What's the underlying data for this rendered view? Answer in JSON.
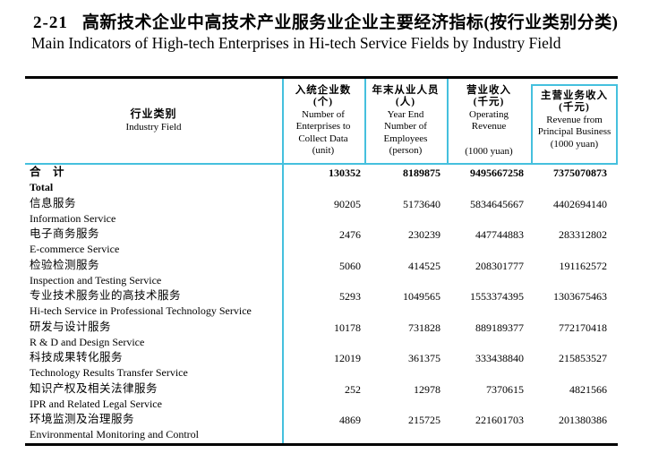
{
  "title": {
    "no": "2-21",
    "zh": "高新技术企业中高技术产业服务业企业主要经济指标(按行业类别分类)",
    "en": "Main Indicators of High-tech Enterprises in Hi-tech Service Fields by Industry Field"
  },
  "colors": {
    "accent": "#45c0de",
    "rule": "#000000"
  },
  "table": {
    "header": {
      "col1": {
        "zh": "行业类别",
        "en": "Industry Field"
      },
      "col2": {
        "zh": "入统企业数",
        "unit_zh": "(个)",
        "en1": "Number of",
        "en2": "Enterprises to",
        "en3": "Collect Data",
        "unit_en": "(unit)"
      },
      "col3": {
        "zh": "年末从业人员",
        "unit_zh": "(人)",
        "en1": "Year End",
        "en2": "Number of",
        "en3": "Employees",
        "unit_en": "(person)"
      },
      "col4": {
        "zh": "营业收入",
        "unit_zh": "(千元)",
        "en1": "Operating",
        "en2": "Revenue",
        "unit_en": "(1000 yuan)"
      },
      "col5": {
        "zh": "主营业务收入",
        "unit_zh": "(千元)",
        "en1": "Revenue from",
        "en2": "Principal Business",
        "unit_en": "(1000 yuan)"
      }
    },
    "rows": [
      {
        "zh": "合　计",
        "en": "Total",
        "bold": true,
        "values": [
          "130352",
          "8189875",
          "9495667258",
          "7375070873"
        ]
      },
      {
        "zh": "信息服务",
        "en": "Information Service",
        "bold": false,
        "values": [
          "90205",
          "5173640",
          "5834645667",
          "4402694140"
        ]
      },
      {
        "zh": "电子商务服务",
        "en": "E-commerce Service",
        "bold": false,
        "values": [
          "2476",
          "230239",
          "447744883",
          "283312802"
        ]
      },
      {
        "zh": "检验检测服务",
        "en": "Inspection and Testing Service",
        "bold": false,
        "values": [
          "5060",
          "414525",
          "208301777",
          "191162572"
        ]
      },
      {
        "zh": "专业技术服务业的高技术服务",
        "en": "Hi-tech Service in Professional Technology Service",
        "bold": false,
        "values": [
          "5293",
          "1049565",
          "1553374395",
          "1303675463"
        ]
      },
      {
        "zh": "研发与设计服务",
        "en": "R & D and Design Service",
        "bold": false,
        "values": [
          "10178",
          "731828",
          "889189377",
          "772170418"
        ]
      },
      {
        "zh": "科技成果转化服务",
        "en": "Technology Results Transfer Service",
        "bold": false,
        "values": [
          "12019",
          "361375",
          "333438840",
          "215853527"
        ]
      },
      {
        "zh": "知识产权及相关法律服务",
        "en": "IPR and Related Legal Service",
        "bold": false,
        "values": [
          "252",
          "12978",
          "7370615",
          "4821566"
        ]
      },
      {
        "zh": "环境监测及治理服务",
        "en": "Environmental Monitoring and Control",
        "bold": false,
        "values": [
          "4869",
          "215725",
          "221601703",
          "201380386"
        ]
      }
    ]
  }
}
